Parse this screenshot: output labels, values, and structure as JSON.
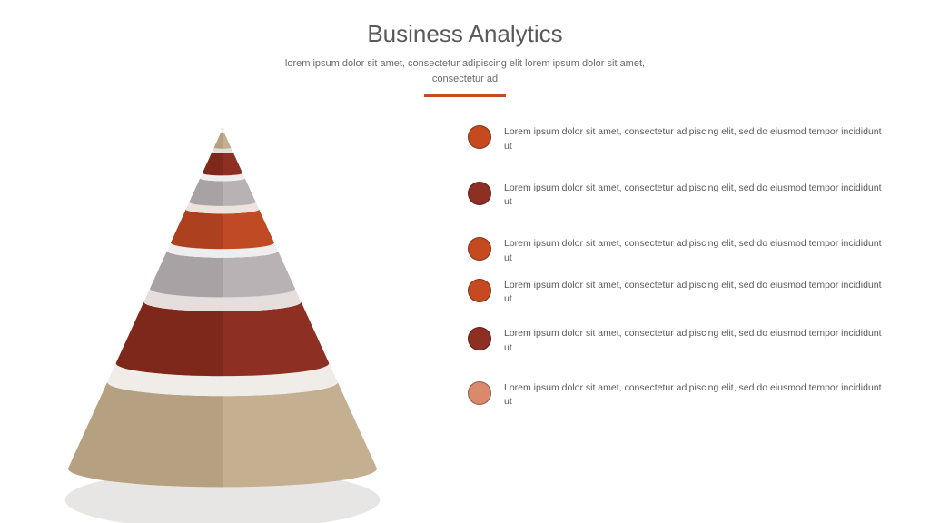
{
  "header": {
    "title": "Business Analytics",
    "title_fontsize": 26,
    "title_color": "#5a5a5a",
    "subtitle": "lorem ipsum dolor sit amet, consectetur adipiscing elit  lorem ipsum dolor sit amet, consectetur ad",
    "subtitle_color": "#6b6b6b",
    "subtitle_fontsize": 11,
    "divider_color": "#c64a1f",
    "divider_width": 90
  },
  "cone": {
    "type": "pyramid-3d",
    "segments": [
      {
        "color": "#c4af90",
        "shade": "#a99576",
        "gap": "#f0ede8"
      },
      {
        "color": "#8d2f22",
        "shade": "#722318",
        "gap": "#e6dedc"
      },
      {
        "color": "#b9b2b4",
        "shade": "#9c9698",
        "gap": "#efedee"
      },
      {
        "color": "#c04a24",
        "shade": "#9d3a1b",
        "gap": "#eee2dd"
      },
      {
        "color": "#b9b2b4",
        "shade": "#9c9698",
        "gap": "#efedee"
      },
      {
        "color": "#8d2f22",
        "shade": "#722318",
        "gap": "#e6dedc"
      },
      {
        "color": "#c4af90",
        "shade": "#a99576",
        "gap": "#f0ede8"
      }
    ],
    "shadow_color": "#e8e6e4"
  },
  "legend": {
    "dot_diameter": 26,
    "text_color": "#5a5a5a",
    "text_fontsize": 10.5,
    "items": [
      {
        "color": "#c64a1f",
        "gap_after": 30,
        "text": "Lorem ipsum dolor sit amet, consectetur adipiscing elit, sed do eiusmod tempor incididunt ut"
      },
      {
        "color": "#8d2f22",
        "gap_after": 30,
        "text": "Lorem ipsum dolor sit amet, consectetur adipiscing elit, sed do eiusmod tempor incididunt ut"
      },
      {
        "color": "#c64a1f",
        "gap_after": 14,
        "text": "Lorem ipsum dolor sit amet, consectetur adipiscing elit, sed do eiusmod tempor incididunt ut"
      },
      {
        "color": "#c64a1f",
        "gap_after": 22,
        "text": "Lorem ipsum dolor sit amet, consectetur adipiscing elit, sed do eiusmod tempor incididunt ut"
      },
      {
        "color": "#8d2f22",
        "gap_after": 28,
        "text": "Lorem ipsum dolor sit amet, consectetur adipiscing elit, sed do eiusmod tempor incididunt ut"
      },
      {
        "color": "#d98a6c",
        "gap_after": 0,
        "text": "Lorem ipsum dolor sit amet, consectetur adipiscing elit, sed do eiusmod tempor incididunt ut"
      }
    ]
  },
  "background_color": "#ffffff"
}
